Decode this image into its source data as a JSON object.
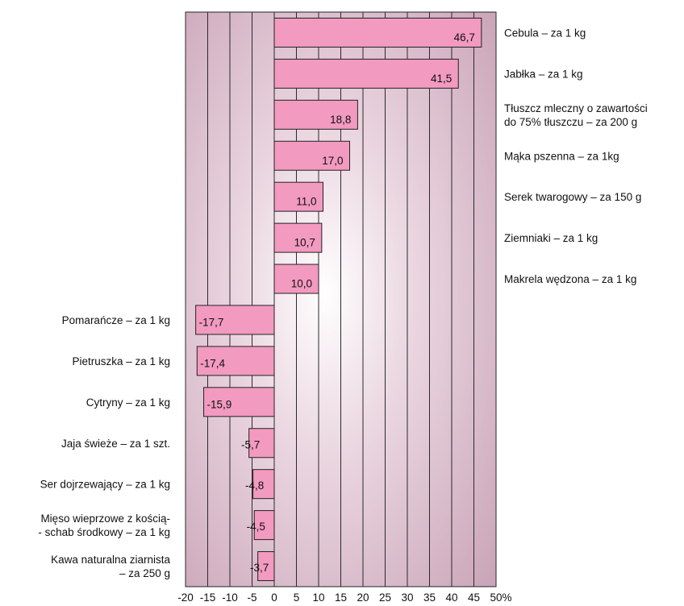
{
  "chart_data": {
    "type": "bar",
    "orientation": "horizontal",
    "categories": [
      "Cebula – za 1 kg",
      "Jabłka – za 1 kg",
      "Tłuszcz mleczny o zawartości\ndo 75% tłuszczu  – za 200 g",
      "Mąka pszenna – za 1kg",
      "Serek twarogowy – za 150 g",
      "Ziemniaki – za 1 kg",
      "Makrela wędzona – za 1 kg",
      "Pomarańcze – za 1 kg",
      "Pietruszka – za 1 kg",
      "Cytryny – za 1 kg",
      "Jaja świeże – za 1 szt.",
      "Ser dojrzewający – za 1 kg",
      "Mięso wieprzowe z kością-\n- schab środkowy – za 1 kg",
      "Kawa naturalna ziarnista\n– za 250 g"
    ],
    "values": [
      46.7,
      41.5,
      18.8,
      17.0,
      11.0,
      10.7,
      10.0,
      -17.7,
      -17.4,
      -15.9,
      -5.7,
      -4.8,
      -4.5,
      -3.7
    ],
    "value_labels": [
      "46,7",
      "41,5",
      "18,8",
      "17,0",
      "11,0",
      "10,7",
      "10,0",
      "-17,7",
      "-17,4",
      "-15,9",
      "-5,7",
      "-4,8",
      "-4,5",
      "-3,7"
    ],
    "x_ticks": [
      "-20",
      "-15",
      "-10",
      "-5",
      "0",
      "5",
      "10",
      "15",
      "20",
      "25",
      "30",
      "35",
      "40",
      "45",
      "50%"
    ],
    "xlim": [
      -20,
      50
    ],
    "bar_color": "#f29ac0",
    "grid": true,
    "title": "",
    "xlabel": "",
    "ylabel": ""
  }
}
